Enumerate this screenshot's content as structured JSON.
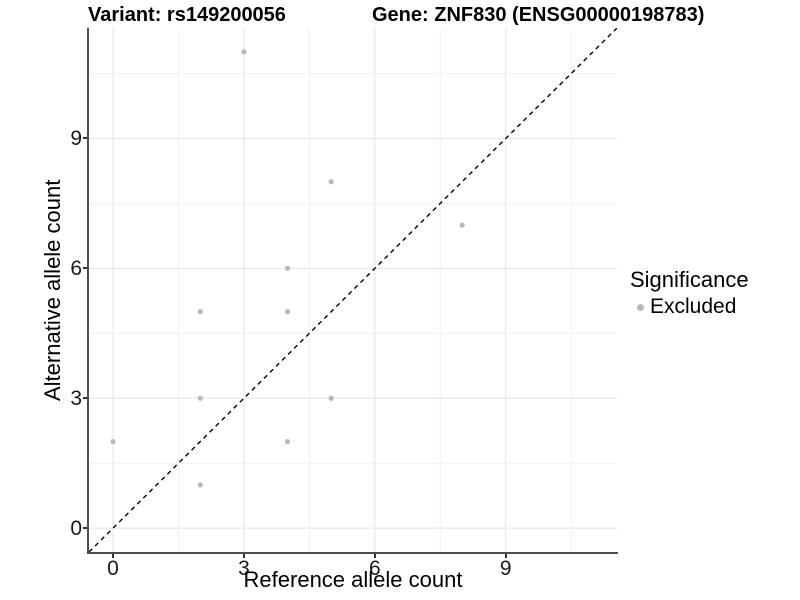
{
  "titles": {
    "variant": "Variant: rs149200056",
    "gene": "Gene: ZNF830 (ENSG00000198783)"
  },
  "chart_data": {
    "type": "scatter",
    "title_left": "Variant: rs149200056",
    "title_right": "Gene: ZNF830 (ENSG00000198783)",
    "xlabel": "Reference allele count",
    "ylabel": "Alternative allele count",
    "points": [
      {
        "x": 0,
        "y": 2
      },
      {
        "x": 2,
        "y": 1
      },
      {
        "x": 2,
        "y": 3
      },
      {
        "x": 2,
        "y": 5
      },
      {
        "x": 3,
        "y": 11
      },
      {
        "x": 4,
        "y": 2
      },
      {
        "x": 4,
        "y": 5
      },
      {
        "x": 4,
        "y": 6
      },
      {
        "x": 5,
        "y": 3
      },
      {
        "x": 5,
        "y": 8
      },
      {
        "x": 8,
        "y": 7
      }
    ],
    "series_name": "Excluded",
    "xticks": [
      0,
      3,
      6,
      9
    ],
    "yticks": [
      0,
      3,
      6,
      9
    ],
    "minor_breaks": [
      1.5,
      4.5,
      7.5,
      10.5
    ],
    "xlim": [
      -0.55,
      11.55
    ],
    "ylim": [
      -0.55,
      11.55
    ],
    "grid": true,
    "identity_line": {
      "type": "dashed",
      "slope": 1,
      "intercept": 0,
      "color": "#000000"
    },
    "legend": {
      "title": "Significance",
      "position": "right",
      "items": [
        {
          "label": "Excluded",
          "color": "#b8b8b8",
          "marker": "circle"
        }
      ]
    },
    "colors": {
      "point": "#b8b8b8",
      "grid_major": "#e4e4e4",
      "grid_minor": "#f1f1f1",
      "axis_line": "#4d4d4d",
      "tick_mark": "#333333",
      "dashed_line": "#000000"
    }
  }
}
